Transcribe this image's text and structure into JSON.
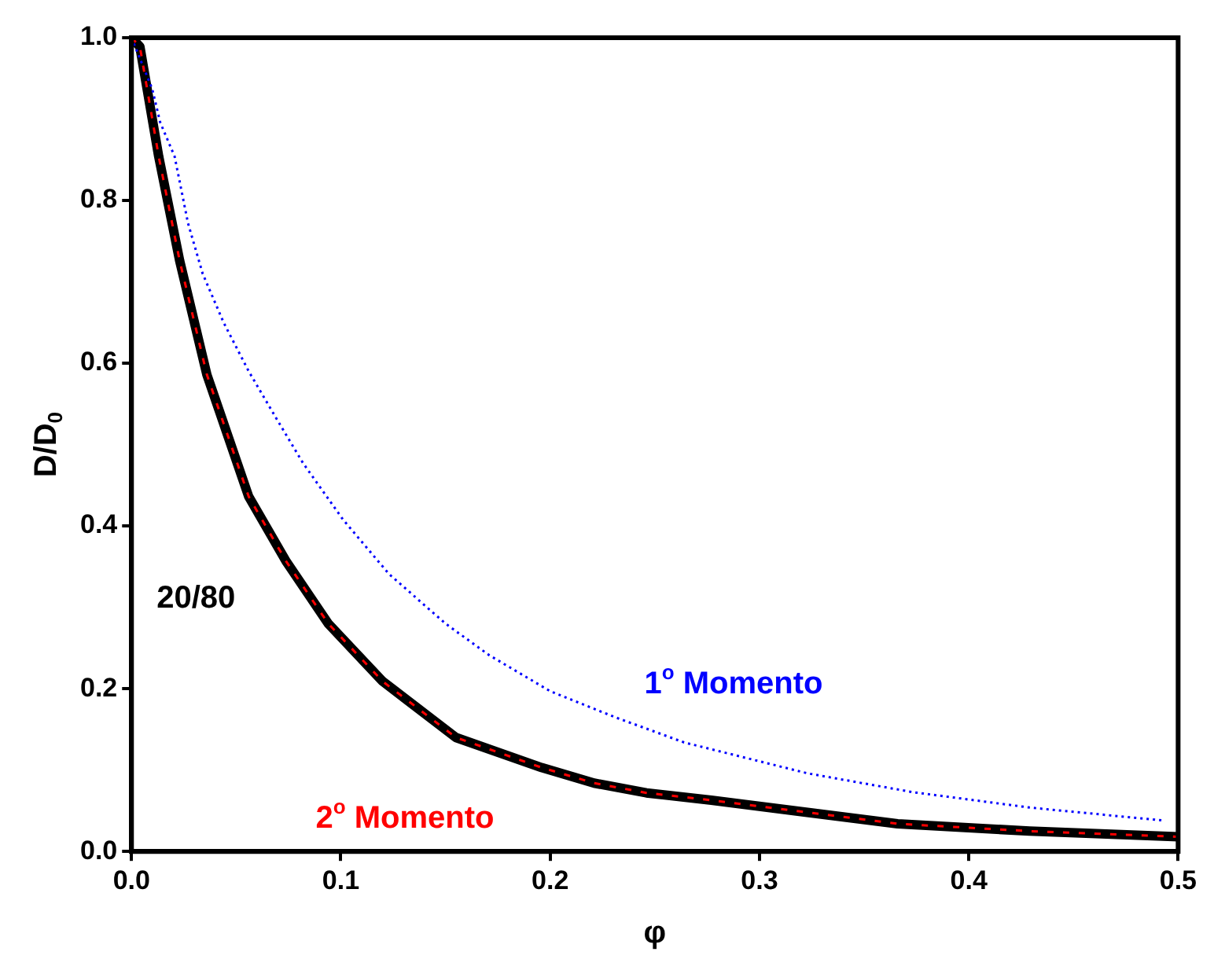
{
  "chart_data": {
    "type": "line",
    "xlabel": "φ",
    "ylabel": "D/D$_{0}$",
    "xlim": [
      0,
      0.5
    ],
    "ylim": [
      0,
      1.0
    ],
    "xticks": [
      {
        "value": 0,
        "label": "0.0"
      },
      0.1,
      0.2,
      0.3,
      0.4,
      0.5
    ],
    "yticks": [
      {
        "value": 0,
        "label": "0.0"
      },
      0.2,
      0.4,
      0.6,
      0.8,
      {
        "value": 1,
        "label": "1.0"
      }
    ],
    "grid": false,
    "legend": false,
    "marker": "none",
    "series": [
      {
        "name": "20/80",
        "color": "#000000",
        "line_style": "solid",
        "x": [
          0,
          0.004,
          0.013,
          0.023,
          0.036,
          0.056,
          0.074,
          0.094,
          0.12,
          0.155,
          0.196,
          0.221,
          0.246,
          0.277,
          0.366,
          0.429,
          0.5
        ],
        "values": [
          1.0,
          0.989,
          0.854,
          0.726,
          0.586,
          0.436,
          0.356,
          0.28,
          0.209,
          0.14,
          0.103,
          0.084,
          0.072,
          0.063,
          0.034,
          0.025,
          0.018
        ]
      },
      {
        "name": "1$^{o}$ Momento",
        "color": "#0000ff",
        "line_style": "dotted",
        "x": [
          0,
          0.0099,
          0.0137,
          0.0206,
          0.027,
          0.034,
          0.044,
          0.056,
          0.069,
          0.082,
          0.101,
          0.123,
          0.15,
          0.171,
          0.2,
          0.231,
          0.264,
          0.323,
          0.373,
          0.429,
          0.485,
          0.493
        ],
        "values": [
          1.0,
          0.937,
          0.896,
          0.854,
          0.772,
          0.71,
          0.65,
          0.59,
          0.533,
          0.477,
          0.408,
          0.341,
          0.28,
          0.241,
          0.197,
          0.165,
          0.134,
          0.096,
          0.073,
          0.054,
          0.04,
          0.038
        ]
      },
      {
        "name": "2$^{o}$ Momento",
        "color": "#ff0000",
        "line_style": "dashed",
        "x": [
          0,
          0.004,
          0.013,
          0.023,
          0.036,
          0.056,
          0.074,
          0.094,
          0.12,
          0.155,
          0.196,
          0.221,
          0.246,
          0.277,
          0.366,
          0.429,
          0.5
        ],
        "values": [
          1.0,
          0.989,
          0.854,
          0.726,
          0.586,
          0.436,
          0.356,
          0.28,
          0.209,
          0.14,
          0.103,
          0.084,
          0.072,
          0.063,
          0.034,
          0.025,
          0.018
        ]
      }
    ]
  }
}
